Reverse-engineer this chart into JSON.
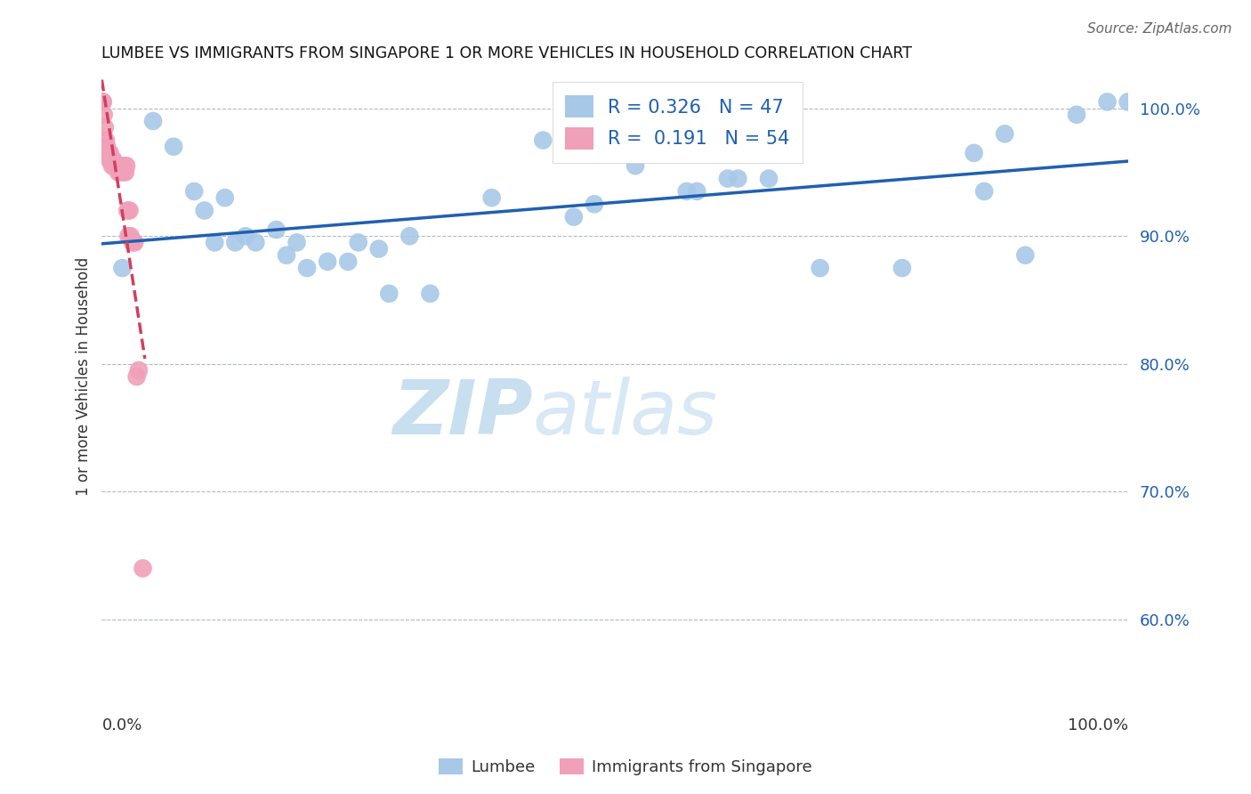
{
  "title": "LUMBEE VS IMMIGRANTS FROM SINGAPORE 1 OR MORE VEHICLES IN HOUSEHOLD CORRELATION CHART",
  "source": "Source: ZipAtlas.com",
  "ylabel": "1 or more Vehicles in Household",
  "xlim": [
    0.0,
    1.0
  ],
  "ylim": [
    0.55,
    1.03
  ],
  "yticks": [
    0.6,
    0.7,
    0.8,
    0.9,
    1.0
  ],
  "ytick_labels": [
    "60.0%",
    "70.0%",
    "80.0%",
    "90.0%",
    "100.0%"
  ],
  "legend_blue_R": "0.326",
  "legend_blue_N": "47",
  "legend_pink_R": "0.191",
  "legend_pink_N": "54",
  "blue_color": "#a8c8e8",
  "pink_color": "#f0a0b8",
  "line_blue": "#2060b0",
  "line_pink": "#d04060",
  "watermark_zip": "ZIP",
  "watermark_atlas": "atlas",
  "lumbee_x": [
    0.02,
    0.05,
    0.07,
    0.09,
    0.1,
    0.11,
    0.12,
    0.13,
    0.14,
    0.15,
    0.17,
    0.18,
    0.19,
    0.2,
    0.22,
    0.24,
    0.25,
    0.27,
    0.28,
    0.3,
    0.32,
    0.38,
    0.43,
    0.46,
    0.48,
    0.52,
    0.57,
    0.58,
    0.61,
    0.62,
    0.65,
    0.7,
    0.78,
    0.85,
    0.86,
    0.88,
    0.9,
    0.95,
    0.98,
    1.0
  ],
  "lumbee_y": [
    0.875,
    0.99,
    0.97,
    0.935,
    0.92,
    0.895,
    0.93,
    0.895,
    0.9,
    0.895,
    0.905,
    0.885,
    0.895,
    0.875,
    0.88,
    0.88,
    0.895,
    0.89,
    0.855,
    0.9,
    0.855,
    0.93,
    0.975,
    0.915,
    0.925,
    0.955,
    0.935,
    0.935,
    0.945,
    0.945,
    0.945,
    0.875,
    0.875,
    0.965,
    0.935,
    0.98,
    0.885,
    0.995,
    1.005,
    1.005
  ],
  "singapore_x": [
    0.001,
    0.001,
    0.002,
    0.003,
    0.004,
    0.005,
    0.006,
    0.007,
    0.008,
    0.009,
    0.01,
    0.011,
    0.012,
    0.013,
    0.014,
    0.015,
    0.016,
    0.017,
    0.018,
    0.019,
    0.02,
    0.021,
    0.022,
    0.023,
    0.024,
    0.025,
    0.026,
    0.027,
    0.028,
    0.03,
    0.032,
    0.034,
    0.036,
    0.04
  ],
  "singapore_y": [
    1.005,
    1.005,
    0.995,
    0.985,
    0.975,
    0.97,
    0.965,
    0.96,
    0.965,
    0.96,
    0.955,
    0.96,
    0.955,
    0.955,
    0.955,
    0.955,
    0.95,
    0.955,
    0.95,
    0.955,
    0.955,
    0.95,
    0.955,
    0.95,
    0.955,
    0.92,
    0.9,
    0.92,
    0.9,
    0.895,
    0.895,
    0.79,
    0.795,
    0.64
  ],
  "pink_line_x": [
    0.0,
    0.042
  ],
  "pink_line_y_start": 0.955,
  "pink_line_slope": -8.5
}
